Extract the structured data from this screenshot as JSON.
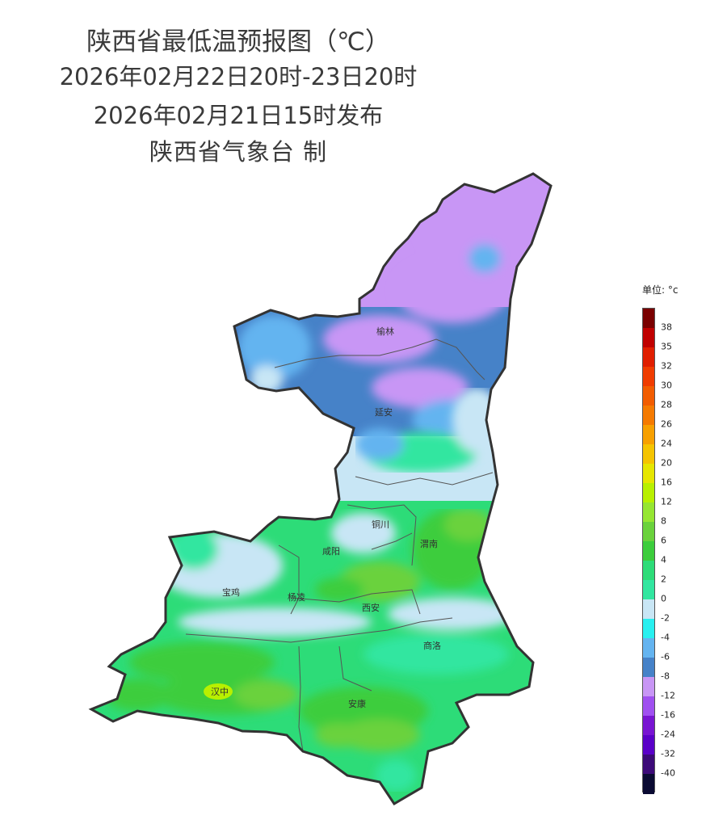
{
  "header": {
    "title": "陕西省最低温预报图（℃）",
    "period": "2026年02月22日20时-23日20时",
    "issued": "2026年02月21日15时发布",
    "producer": "陕西省气象台 制"
  },
  "map": {
    "cities": [
      {
        "name": "榆林",
        "key": "yulin"
      },
      {
        "name": "延安",
        "key": "yanan"
      },
      {
        "name": "铜川",
        "key": "tongchuan"
      },
      {
        "name": "咸阳",
        "key": "xianyang"
      },
      {
        "name": "渭南",
        "key": "weinan"
      },
      {
        "name": "宝鸡",
        "key": "baoji"
      },
      {
        "name": "杨凌",
        "key": "yangling"
      },
      {
        "name": "西安",
        "key": "xian"
      },
      {
        "name": "商洛",
        "key": "shangluo"
      },
      {
        "name": "汉中",
        "key": "hanzhong"
      },
      {
        "name": "安康",
        "key": "ankang"
      }
    ]
  },
  "legend": {
    "unit": "单位: °c",
    "labels": [
      "38",
      "35",
      "32",
      "30",
      "28",
      "26",
      "24",
      "20",
      "16",
      "12",
      "8",
      "6",
      "4",
      "2",
      "0",
      "-2",
      "-4",
      "-6",
      "-8",
      "-12",
      "-16",
      "-24",
      "-32",
      "-40"
    ],
    "colors": [
      "#7a0000",
      "#c00000",
      "#e01e00",
      "#f03c00",
      "#f25c00",
      "#f57a00",
      "#f7a000",
      "#f5c400",
      "#e6e600",
      "#b8f000",
      "#96e632",
      "#6ad23c",
      "#3ccd3c",
      "#2ddc78",
      "#32e6a0",
      "#c8e6f5",
      "#28f0f0",
      "#64b4f0",
      "#4682c8",
      "#c896f5",
      "#a050f0",
      "#7814d2",
      "#5a00c8",
      "#3c0a78",
      "#0a0a32"
    ]
  }
}
